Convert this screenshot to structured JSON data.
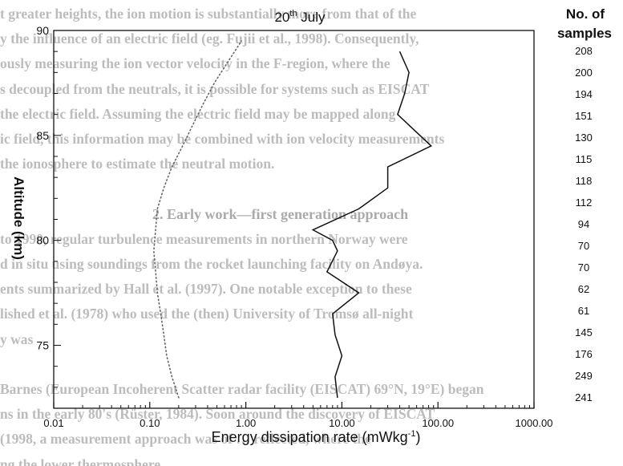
{
  "background_text": [
    "t greater heights, the ion motion is substantially more from that of the",
    "y the influence of an electric field (eg. Fujii et al., 1998). Consequently,",
    "ously measuring the ion vector velocity in the F-region, where the",
    "s decoupled from the neutrals, it is possible for systems such as EISCAT",
    "the electric field. Assuming the electric field may be mapped along",
    "ic field, this information may be combined with ion velocity measurements",
    "the ionosphere to estimate the neutral motion.",
    "",
    "2. Early work—first generation approach",
    "to 1990, regular turbulence measurements in northern Norway were",
    "d in situ using soundings from the rocket launching facility on Andøya.",
    "ents summarized by Hall et al. (1997). One notable exception to these",
    "lished et al. (1978) who used the (then) University of Tromsø all-night",
    "y was",
    "",
    "Barnes (European Incoherent Scatter radar facility (EISCAT) 69°N, 19°E) began",
    "ns in the early 80's (Rüster, 1984). Soon around the discovery of EISCAT",
    "(1998, a measurement approach was of … reflected, where the",
    "ng the lower thermosphere"
  ],
  "chart_data": {
    "type": "line",
    "title": "20th July",
    "title_main": "20",
    "title_sup": "th",
    "title_rest": " July",
    "xlabel": "Energy dissipation rate (mWkg⁻¹)",
    "xlabel_main": "Energy dissipation rate (mWkg",
    "xlabel_sup": "-1",
    "xlabel_close": ")",
    "ylabel": "Altitude (km)",
    "x_scale": "log",
    "xlim": [
      0.01,
      1000
    ],
    "ylim": [
      72,
      90
    ],
    "x_ticks": [
      0.01,
      0.1,
      1,
      10,
      100,
      1000
    ],
    "x_tick_labels": [
      "0.01",
      "0.10",
      "1.00",
      "10.00",
      "100.00",
      "1000.00"
    ],
    "y_ticks": [
      75,
      80,
      85,
      90
    ],
    "y_tick_labels": [
      "75",
      "80",
      "85",
      "90"
    ],
    "grid": false,
    "series": [
      {
        "style": "solid",
        "color": "#111111",
        "x": [
          9.0,
          8.5,
          10.0,
          8.5,
          8.0,
          15.0,
          7.0,
          9.0,
          8.0,
          5.0,
          15.0,
          30.0,
          30.0,
          85.0,
          38.0,
          45.0,
          50.0,
          40.0
        ],
        "y": [
          72.5,
          73.5,
          74.5,
          75.5,
          76.5,
          77.5,
          78.5,
          79.5,
          80.0,
          80.5,
          81.5,
          82.5,
          83.5,
          84.5,
          86.0,
          87.0,
          88.0,
          89.0
        ]
      },
      {
        "style": "dotted",
        "color": "#666666",
        "x": [
          0.2,
          0.17,
          0.15,
          0.14,
          0.13,
          0.12,
          0.115,
          0.11,
          0.115,
          0.12,
          0.14,
          0.17,
          0.22,
          0.28,
          0.36,
          0.47,
          0.65,
          0.9
        ],
        "y": [
          72.5,
          73.5,
          74.5,
          75.5,
          76.5,
          77.5,
          78.5,
          79.5,
          80.5,
          81.5,
          82.5,
          83.5,
          84.5,
          85.5,
          86.5,
          87.5,
          88.5,
          89.5
        ]
      }
    ],
    "samples_header": [
      "No. of",
      "samples"
    ],
    "samples": [
      208,
      200,
      194,
      151,
      130,
      115,
      118,
      112,
      94,
      70,
      70,
      62,
      61,
      145,
      176,
      249,
      241
    ]
  }
}
